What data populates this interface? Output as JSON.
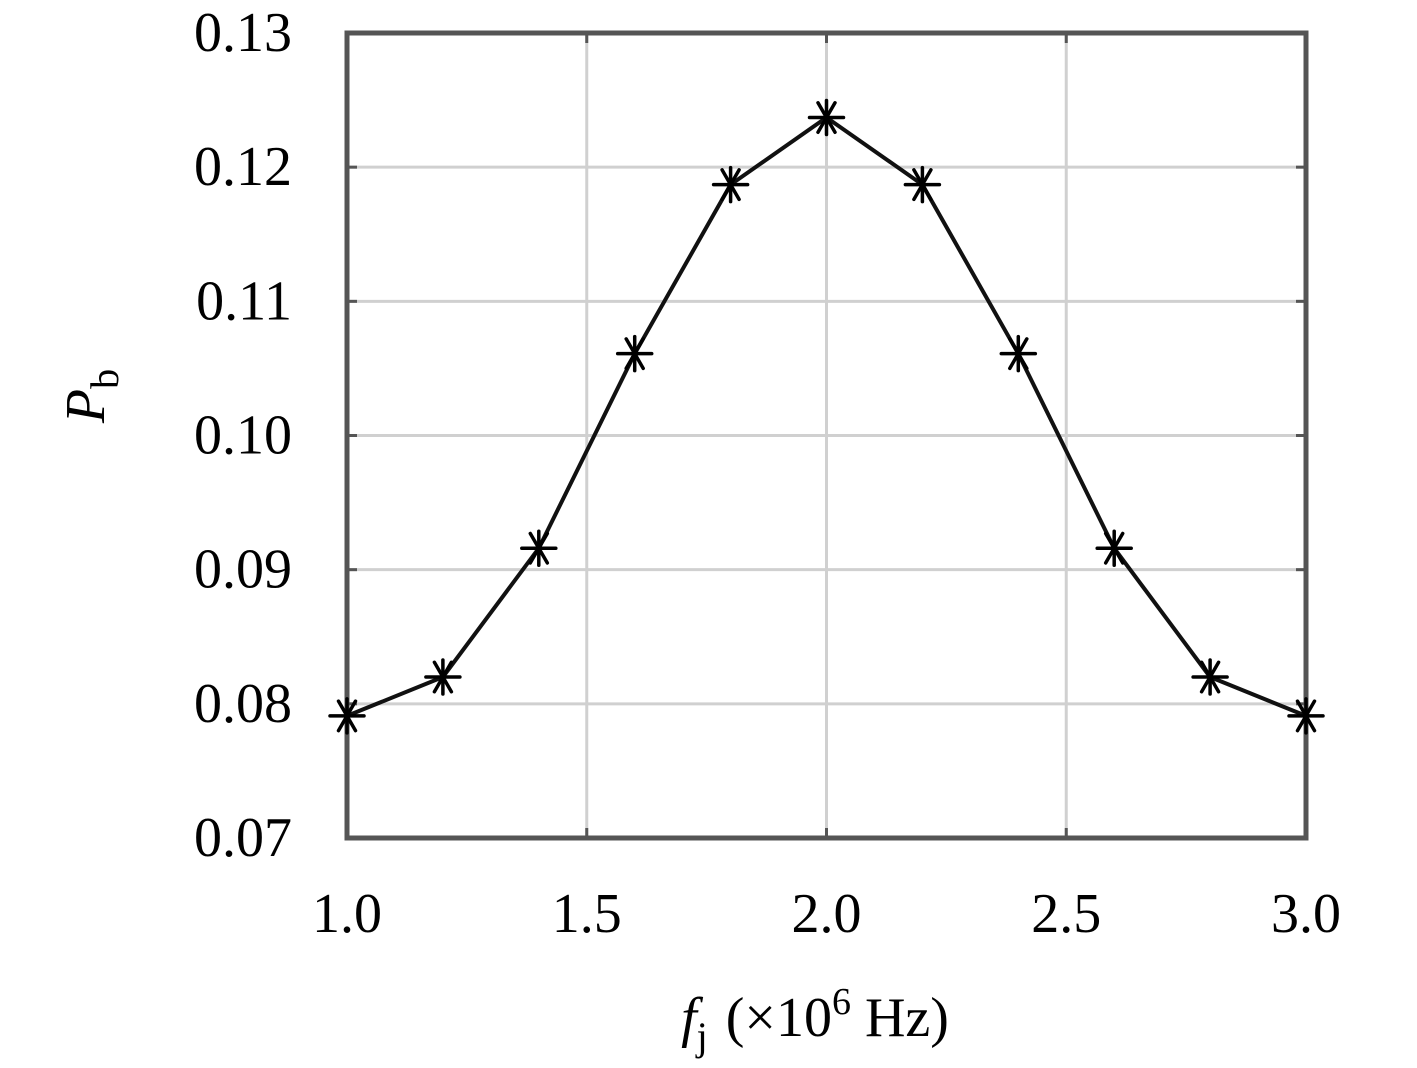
{
  "chart_data": {
    "type": "line",
    "xlabel": {
      "symbol": "f",
      "subscript": "j",
      "unit_prefix": "(×10",
      "exponent": "6",
      "unit_suffix": " Hz)"
    },
    "ylabel": {
      "symbol": "P",
      "subscript": "b"
    },
    "xlim": [
      1.0,
      3.0
    ],
    "ylim": [
      0.07,
      0.13
    ],
    "x_ticks": [
      1.0,
      1.5,
      2.0,
      2.5,
      3.0
    ],
    "x_tick_labels": [
      "1.0",
      "1.5",
      "2.0",
      "2.5",
      "3.0"
    ],
    "y_ticks": [
      0.07,
      0.08,
      0.09,
      0.1,
      0.11,
      0.12,
      0.13
    ],
    "y_tick_labels": [
      "0.07",
      "0.08",
      "0.09",
      "0.10",
      "0.11",
      "0.12",
      "0.13"
    ],
    "grid": true,
    "marker": "asterisk",
    "color": "#111111",
    "series": [
      {
        "x": [
          1.0,
          1.2,
          1.4,
          1.6,
          1.8,
          2.0,
          2.2,
          2.4,
          2.6,
          2.8,
          3.0
        ],
        "y": [
          0.0791,
          0.082,
          0.0916,
          0.1061,
          0.1187,
          0.1237,
          0.1187,
          0.1061,
          0.0916,
          0.082,
          0.0791
        ]
      }
    ]
  }
}
